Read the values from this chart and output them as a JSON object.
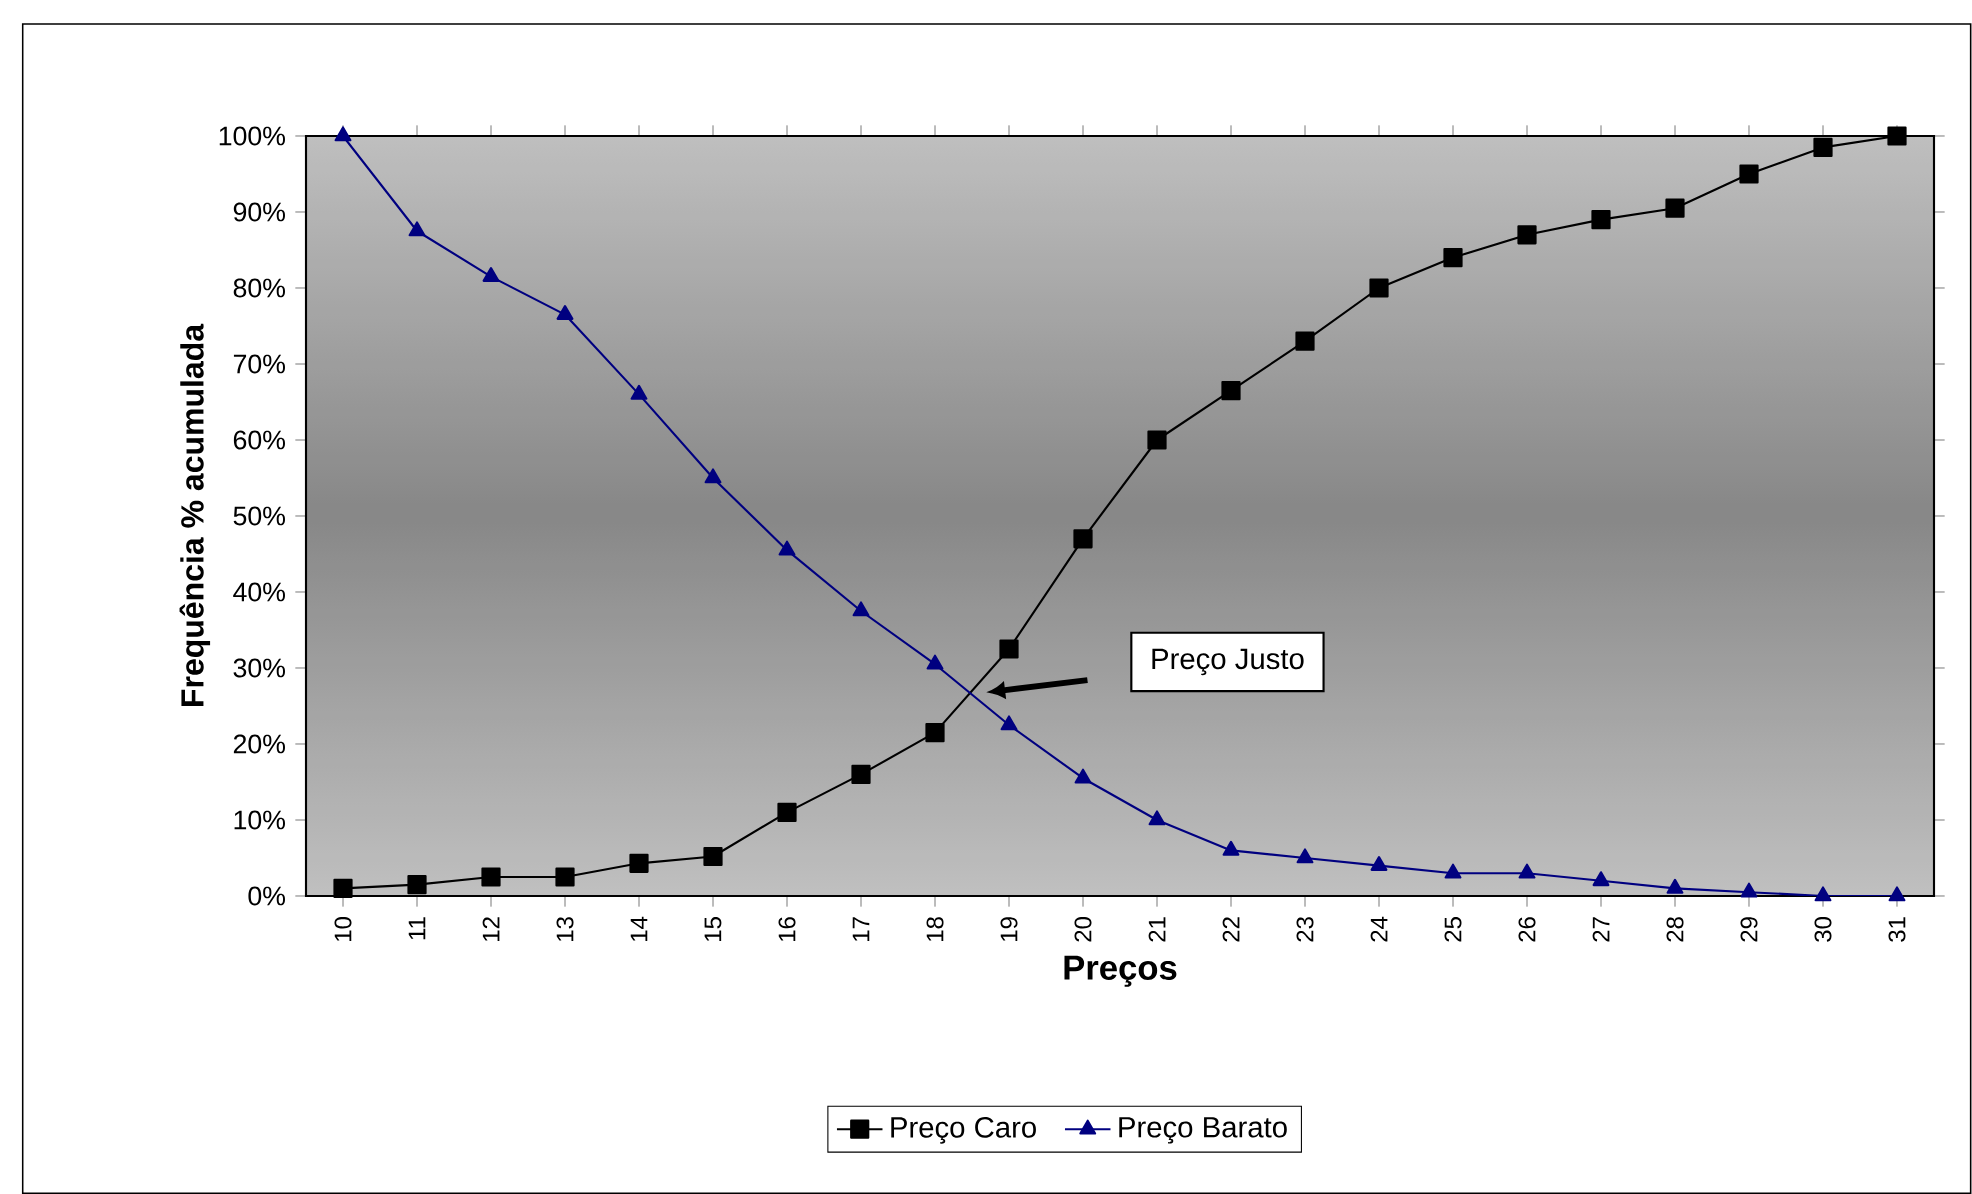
{
  "chart_data": {
    "type": "line",
    "xlabel": "Preços",
    "ylabel": "Frequência % acumulada",
    "categories": [
      "10",
      "11",
      "12",
      "13",
      "14",
      "15",
      "16",
      "17",
      "18",
      "19",
      "20",
      "21",
      "22",
      "23",
      "24",
      "25",
      "26",
      "27",
      "28",
      "29",
      "30",
      "31"
    ],
    "series": [
      {
        "name": "Preço Caro",
        "color": "#000000",
        "marker": "square",
        "values": [
          1,
          1.5,
          2.5,
          2.5,
          4.3,
          5.2,
          11,
          16,
          21.5,
          32.5,
          47,
          60,
          66.5,
          73,
          80,
          84,
          87,
          89,
          90.5,
          95,
          98.5,
          100
        ]
      },
      {
        "name": "Preço Barato",
        "color": "#000080",
        "marker": "triangle",
        "values": [
          100,
          87.5,
          81.5,
          76.5,
          66,
          55,
          45.5,
          37.5,
          30.5,
          22.5,
          15.5,
          10,
          6,
          5,
          4,
          3,
          3,
          2,
          1,
          0.5,
          0,
          0
        ]
      }
    ],
    "ylim": [
      0,
      100
    ],
    "yticks": [
      {
        "value": 0,
        "label": "0%"
      },
      {
        "value": 10,
        "label": "10%"
      },
      {
        "value": 20,
        "label": "20%"
      },
      {
        "value": 30,
        "label": "30%"
      },
      {
        "value": 40,
        "label": "40%"
      },
      {
        "value": 50,
        "label": "50%"
      },
      {
        "value": 60,
        "label": "60%"
      },
      {
        "value": 70,
        "label": "70%"
      },
      {
        "value": 80,
        "label": "80%"
      },
      {
        "value": 90,
        "label": "90%"
      },
      {
        "value": 100,
        "label": "100%"
      }
    ],
    "annotations": [
      "Preço Justo"
    ],
    "legend": "bottom",
    "grid": false,
    "line_style": "solid"
  }
}
